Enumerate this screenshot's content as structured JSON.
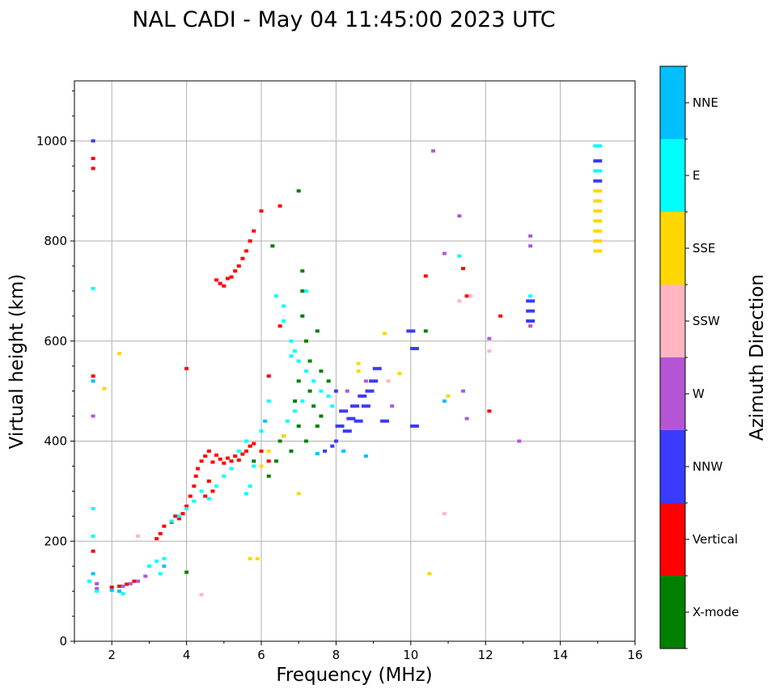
{
  "chart_data": {
    "type": "scatter",
    "title": "NAL CADI - May 04 11:45:00 2023 UTC",
    "xlabel": "Frequency (MHz)",
    "ylabel": "Virtual height (km)",
    "xlim": [
      1,
      16
    ],
    "ylim": [
      0,
      1120
    ],
    "xticks": [
      2,
      4,
      6,
      8,
      10,
      12,
      14,
      16
    ],
    "yticks": [
      0,
      200,
      400,
      600,
      800,
      1000
    ],
    "grid": true,
    "colorbar": {
      "label": "Azimuth Direction",
      "categories": [
        "X-mode",
        "Vertical",
        "NNW",
        "W",
        "SSW",
        "SSE",
        "E",
        "NNE"
      ],
      "colors": [
        "#008000",
        "#ff0000",
        "#3b3bff",
        "#b455d6",
        "#ffb6c1",
        "#ffd700",
        "#00ffff",
        "#00bfff"
      ]
    },
    "series": [
      {
        "name": "Vertical",
        "points": [
          [
            2.0,
            108
          ],
          [
            2.2,
            110
          ],
          [
            2.4,
            114
          ],
          [
            2.6,
            120
          ],
          [
            3.2,
            205
          ],
          [
            3.3,
            215
          ],
          [
            3.4,
            230
          ],
          [
            3.6,
            238
          ],
          [
            3.8,
            245
          ],
          [
            3.9,
            255
          ],
          [
            4.0,
            270
          ],
          [
            4.1,
            290
          ],
          [
            4.2,
            310
          ],
          [
            4.25,
            330
          ],
          [
            4.3,
            345
          ],
          [
            4.4,
            360
          ],
          [
            4.5,
            370
          ],
          [
            4.6,
            380
          ],
          [
            4.7,
            358
          ],
          [
            4.8,
            372
          ],
          [
            4.9,
            364
          ],
          [
            5.0,
            356
          ],
          [
            5.1,
            366
          ],
          [
            5.2,
            360
          ],
          [
            5.3,
            370
          ],
          [
            5.4,
            362
          ],
          [
            5.5,
            374
          ],
          [
            5.6,
            380
          ],
          [
            5.7,
            390
          ],
          [
            5.8,
            395
          ],
          [
            6.0,
            380
          ],
          [
            6.2,
            360
          ],
          [
            6.2,
            530
          ],
          [
            6.5,
            630
          ],
          [
            4.7,
            300
          ],
          [
            4.6,
            320
          ],
          [
            4.5,
            290
          ],
          [
            3.7,
            250
          ],
          [
            4.8,
            722
          ],
          [
            4.9,
            715
          ],
          [
            5.0,
            710
          ],
          [
            5.1,
            725
          ],
          [
            5.2,
            728
          ],
          [
            5.3,
            740
          ],
          [
            5.4,
            750
          ],
          [
            5.5,
            765
          ],
          [
            5.6,
            780
          ],
          [
            5.7,
            800
          ],
          [
            5.8,
            820
          ],
          [
            6.0,
            860
          ],
          [
            6.5,
            870
          ],
          [
            1.5,
            965
          ],
          [
            1.5,
            945
          ],
          [
            1.5,
            530
          ],
          [
            1.5,
            180
          ],
          [
            4.0,
            545
          ],
          [
            10.4,
            730
          ],
          [
            11.4,
            745
          ],
          [
            11.5,
            690
          ],
          [
            12.4,
            650
          ],
          [
            12.1,
            460
          ]
        ]
      },
      {
        "name": "X-mode",
        "points": [
          [
            6.3,
            790
          ],
          [
            6.4,
            360
          ],
          [
            6.5,
            400
          ],
          [
            6.6,
            410
          ],
          [
            6.8,
            380
          ],
          [
            7.0,
            900
          ],
          [
            7.0,
            430
          ],
          [
            7.1,
            740
          ],
          [
            7.1,
            700
          ],
          [
            7.1,
            650
          ],
          [
            7.2,
            600
          ],
          [
            7.3,
            560
          ],
          [
            7.3,
            500
          ],
          [
            7.4,
            470
          ],
          [
            7.5,
            430
          ],
          [
            7.6,
            450
          ],
          [
            7.8,
            520
          ],
          [
            6.9,
            480
          ],
          [
            7.0,
            520
          ],
          [
            7.2,
            400
          ],
          [
            7.5,
            620
          ],
          [
            7.6,
            540
          ],
          [
            6.2,
            330
          ],
          [
            10.4,
            620
          ],
          [
            4.0,
            138
          ],
          [
            5.8,
            360
          ]
        ]
      },
      {
        "name": "NNW",
        "points": [
          [
            7.7,
            380
          ],
          [
            7.9,
            390
          ],
          [
            8.0,
            400
          ],
          [
            8.1,
            430
          ],
          [
            8.2,
            460
          ],
          [
            8.3,
            420
          ],
          [
            8.4,
            445
          ],
          [
            8.5,
            470
          ],
          [
            8.6,
            440
          ],
          [
            8.7,
            490
          ],
          [
            8.8,
            470
          ],
          [
            8.9,
            500
          ],
          [
            9.0,
            520
          ],
          [
            9.1,
            545
          ],
          [
            8.0,
            500
          ],
          [
            9.3,
            440
          ],
          [
            10.1,
            430
          ],
          [
            10.0,
            620
          ],
          [
            10.1,
            585
          ],
          [
            1.5,
            1000
          ],
          [
            13.2,
            680
          ],
          [
            13.2,
            660
          ],
          [
            13.2,
            640
          ],
          [
            15.0,
            960
          ],
          [
            15.0,
            920
          ]
        ]
      },
      {
        "name": "W",
        "points": [
          [
            2.3,
            110
          ],
          [
            2.5,
            115
          ],
          [
            2.7,
            120
          ],
          [
            2.9,
            130
          ],
          [
            1.6,
            115
          ],
          [
            1.6,
            105
          ],
          [
            8.3,
            500
          ],
          [
            8.8,
            520
          ],
          [
            9.5,
            470
          ],
          [
            10.6,
            980
          ],
          [
            13.2,
            810
          ],
          [
            13.2,
            790
          ],
          [
            13.2,
            630
          ],
          [
            11.3,
            850
          ],
          [
            12.1,
            605
          ],
          [
            12.9,
            400
          ],
          [
            10.9,
            775
          ],
          [
            11.4,
            500
          ],
          [
            11.5,
            445
          ],
          [
            1.5,
            450
          ]
        ]
      },
      {
        "name": "SSW",
        "points": [
          [
            4.4,
            93
          ],
          [
            10.9,
            255
          ],
          [
            11.3,
            680
          ],
          [
            11.6,
            690
          ],
          [
            12.1,
            580
          ],
          [
            2.7,
            210
          ],
          [
            9.4,
            520
          ]
        ]
      },
      {
        "name": "SSE",
        "points": [
          [
            5.7,
            165
          ],
          [
            5.9,
            165
          ],
          [
            6.0,
            350
          ],
          [
            6.2,
            380
          ],
          [
            6.6,
            410
          ],
          [
            8.6,
            555
          ],
          [
            8.6,
            540
          ],
          [
            9.3,
            615
          ],
          [
            9.7,
            535
          ],
          [
            10.5,
            135
          ],
          [
            11.0,
            490
          ],
          [
            15.0,
            900
          ],
          [
            15.0,
            880
          ],
          [
            15.0,
            860
          ],
          [
            15.0,
            840
          ],
          [
            15.0,
            820
          ],
          [
            15.0,
            800
          ],
          [
            15.0,
            780
          ],
          [
            1.8,
            505
          ],
          [
            2.2,
            575
          ],
          [
            7.0,
            295
          ]
        ]
      },
      {
        "name": "E",
        "points": [
          [
            2.3,
            95
          ],
          [
            3.0,
            150
          ],
          [
            3.2,
            160
          ],
          [
            3.4,
            165
          ],
          [
            3.3,
            135
          ],
          [
            3.6,
            240
          ],
          [
            3.8,
            250
          ],
          [
            4.0,
            265
          ],
          [
            4.2,
            280
          ],
          [
            4.4,
            300
          ],
          [
            4.6,
            285
          ],
          [
            4.8,
            310
          ],
          [
            5.0,
            330
          ],
          [
            5.2,
            345
          ],
          [
            5.4,
            380
          ],
          [
            5.6,
            400
          ],
          [
            5.8,
            350
          ],
          [
            6.0,
            420
          ],
          [
            6.2,
            480
          ],
          [
            6.4,
            690
          ],
          [
            6.6,
            670
          ],
          [
            6.6,
            640
          ],
          [
            6.8,
            600
          ],
          [
            6.9,
            580
          ],
          [
            7.0,
            560
          ],
          [
            7.2,
            540
          ],
          [
            7.4,
            520
          ],
          [
            7.6,
            500
          ],
          [
            7.8,
            490
          ],
          [
            7.9,
            470
          ],
          [
            6.7,
            440
          ],
          [
            6.9,
            460
          ],
          [
            7.1,
            480
          ],
          [
            5.6,
            295
          ],
          [
            5.7,
            310
          ],
          [
            7.2,
            700
          ],
          [
            6.8,
            570
          ],
          [
            1.5,
            705
          ],
          [
            1.5,
            265
          ],
          [
            1.5,
            210
          ],
          [
            15.0,
            990
          ],
          [
            15.0,
            940
          ],
          [
            13.2,
            690
          ],
          [
            11.3,
            770
          ],
          [
            1.4,
            120
          ],
          [
            1.6,
            100
          ]
        ]
      },
      {
        "name": "NNE",
        "points": [
          [
            2.0,
            102
          ],
          [
            2.2,
            100
          ],
          [
            1.5,
            135
          ],
          [
            1.5,
            520
          ],
          [
            8.8,
            370
          ],
          [
            8.2,
            380
          ],
          [
            7.5,
            375
          ],
          [
            3.4,
            150
          ],
          [
            6.1,
            440
          ],
          [
            10.9,
            480
          ]
        ]
      }
    ]
  }
}
